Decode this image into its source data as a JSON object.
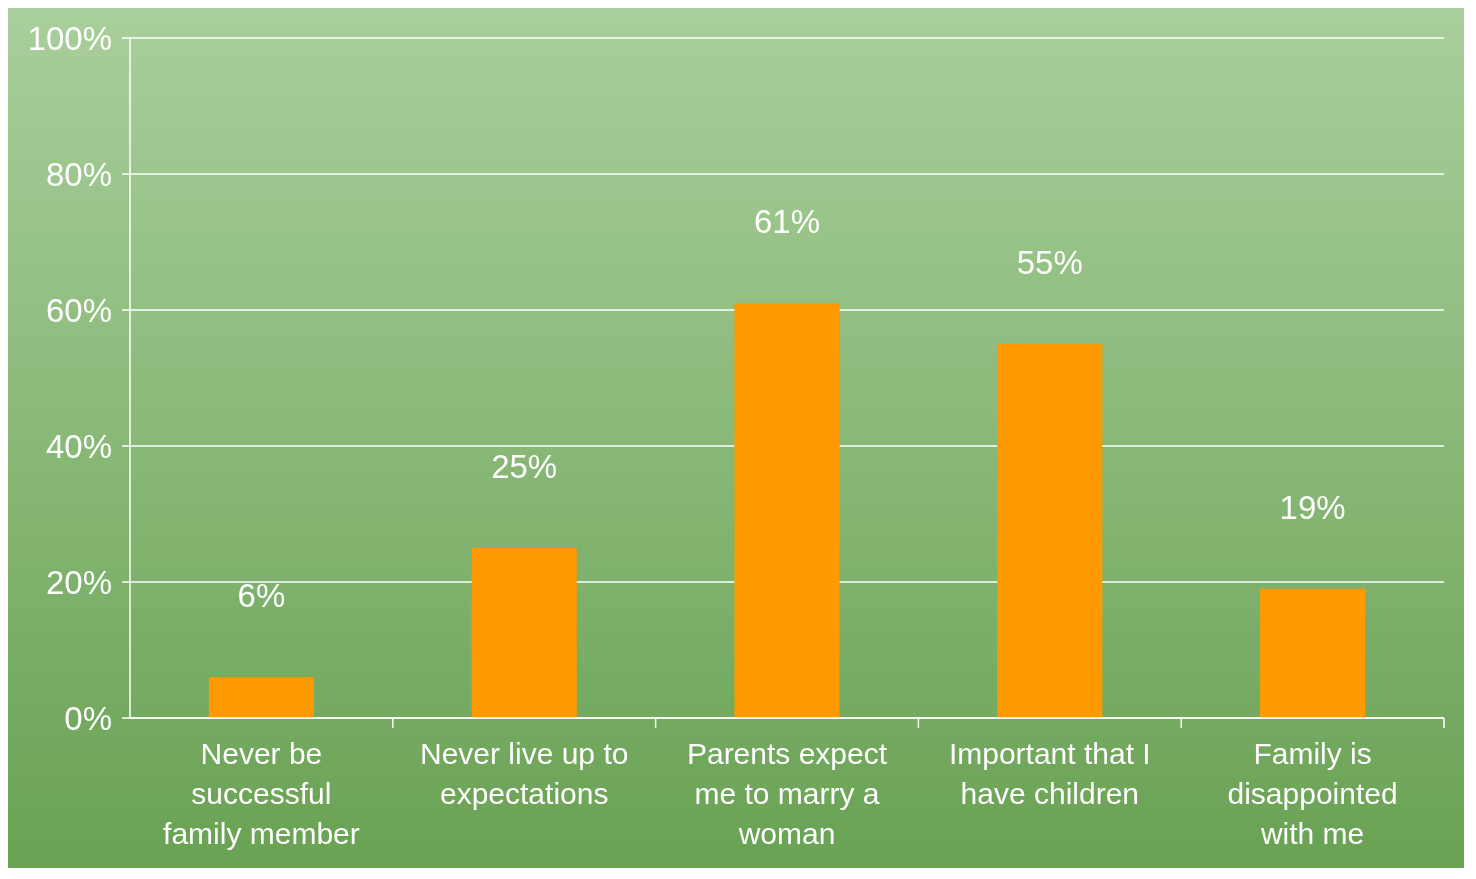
{
  "chart_data": {
    "type": "bar",
    "categories": [
      "Never be successful family member",
      "Never live up to expectations",
      "Parents expect me to marry a woman",
      "Important that I have children",
      "Family is disappointed with me"
    ],
    "values": [
      6,
      25,
      61,
      55,
      19
    ],
    "value_labels": [
      "6%",
      "25%",
      "61%",
      "55%",
      "19%"
    ],
    "color": "#ff9900",
    "ylim": [
      0,
      100
    ],
    "yticks": [
      {
        "value": 0,
        "label": "0%"
      },
      {
        "value": 20,
        "label": "20%"
      },
      {
        "value": 40,
        "label": "40%"
      },
      {
        "value": 60,
        "label": "60%"
      },
      {
        "value": 80,
        "label": "80%"
      },
      {
        "value": 100,
        "label": "100%"
      }
    ],
    "grid": "y"
  }
}
